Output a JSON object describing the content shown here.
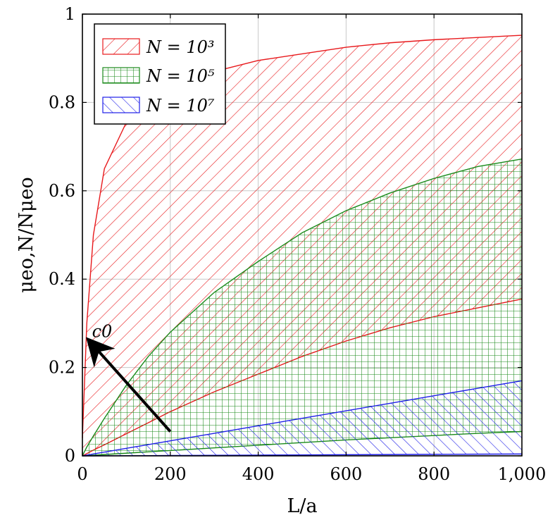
{
  "chart_data": {
    "type": "area",
    "xlabel": "L/a",
    "ylabel": "μeo,N/Nμeo",
    "xlim": [
      0,
      1000
    ],
    "ylim": [
      0,
      1
    ],
    "x_ticks": [
      "0",
      "200",
      "400",
      "600",
      "800",
      "1,000"
    ],
    "y_ticks": [
      "0",
      "0.2",
      "0.4",
      "0.6",
      "0.8",
      "1"
    ],
    "grid": true,
    "legend_position": "top-left",
    "x": [
      0,
      10,
      25,
      50,
      100,
      150,
      200,
      300,
      400,
      500,
      600,
      700,
      800,
      900,
      1000
    ],
    "series": [
      {
        "name": "N = 10³",
        "color": "#e8191c",
        "pattern": "diagonal",
        "upper": [
          0.04,
          0.3,
          0.5,
          0.65,
          0.755,
          0.8,
          0.83,
          0.87,
          0.895,
          0.91,
          0.925,
          0.935,
          0.942,
          0.947,
          0.952
        ],
        "lower": [
          0.0,
          0.005,
          0.013,
          0.025,
          0.05,
          0.075,
          0.1,
          0.145,
          0.185,
          0.225,
          0.26,
          0.29,
          0.315,
          0.335,
          0.355
        ]
      },
      {
        "name": "N = 10⁵",
        "color": "#1a8a1a",
        "pattern": "grid",
        "upper": [
          0.0,
          0.02,
          0.045,
          0.085,
          0.16,
          0.225,
          0.28,
          0.37,
          0.44,
          0.505,
          0.555,
          0.595,
          0.628,
          0.655,
          0.672
        ],
        "lower": [
          0.0,
          0.0005,
          0.0015,
          0.003,
          0.006,
          0.009,
          0.012,
          0.018,
          0.024,
          0.03,
          0.036,
          0.041,
          0.046,
          0.051,
          0.055
        ]
      },
      {
        "name": "N = 10⁷",
        "color": "#1f1fe8",
        "pattern": "anti-diagonal",
        "upper": [
          0.0,
          0.0017,
          0.0043,
          0.0085,
          0.017,
          0.0255,
          0.034,
          0.051,
          0.068,
          0.085,
          0.102,
          0.119,
          0.136,
          0.153,
          0.17
        ],
        "lower": [
          0.0,
          0.0,
          0.0,
          0.0001,
          0.0003,
          0.0005,
          0.0008,
          0.0012,
          0.0017,
          0.0021,
          0.0026,
          0.003,
          0.0034,
          0.0038,
          0.0042
        ]
      }
    ],
    "legend": [
      "N = 10³",
      "N = 10⁵",
      "N = 10⁷"
    ],
    "annotations": [
      {
        "text": "c0",
        "arrow_from": [
          200,
          0.055
        ],
        "arrow_to": [
          25,
          0.25
        ]
      }
    ]
  }
}
